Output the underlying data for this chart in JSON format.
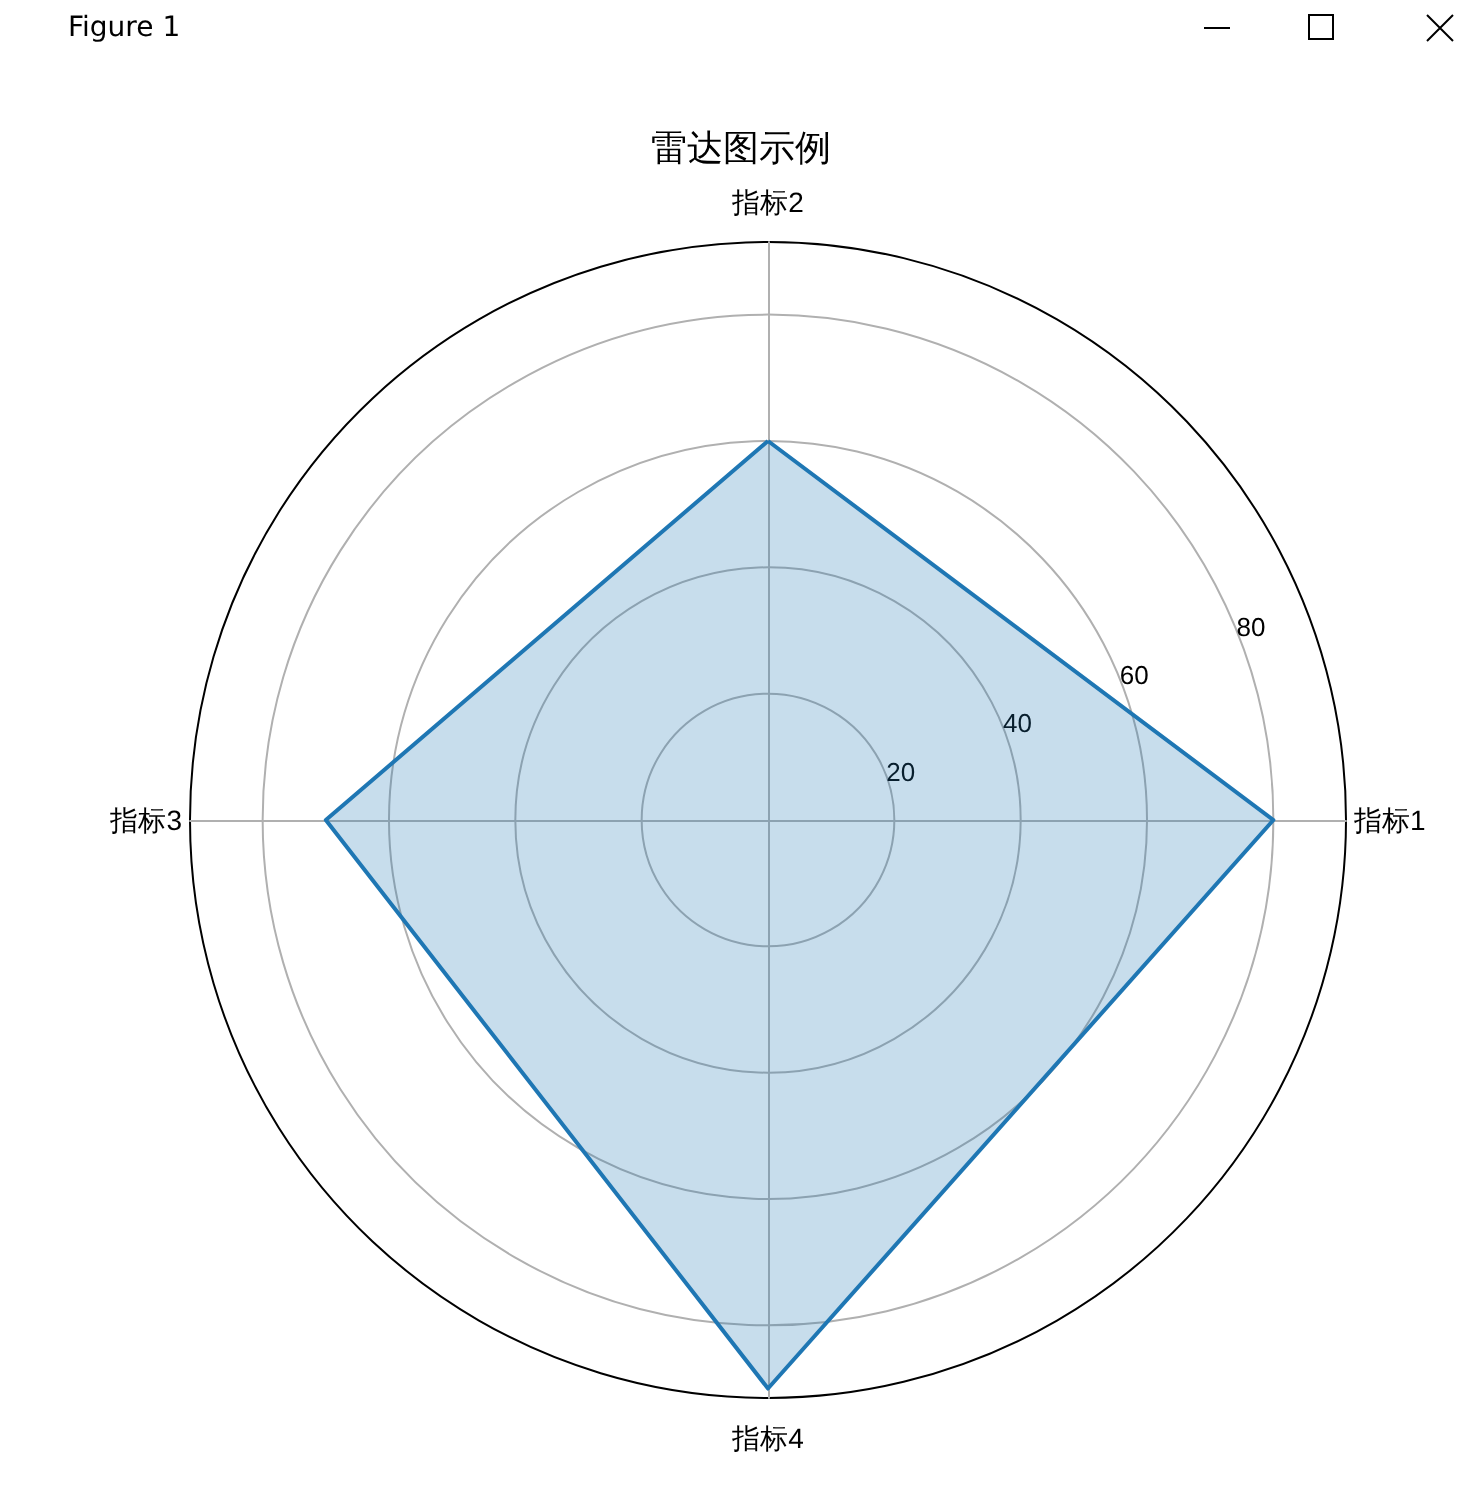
{
  "chart_data": {
    "type": "radar",
    "title": "雷达图示例",
    "categories": [
      "指标2",
      "指标1",
      "指标4",
      "指标3"
    ],
    "series": [
      {
        "color": "#1f77b4",
        "values": [
          60,
          80,
          90,
          70
        ]
      }
    ],
    "ylim": [
      0,
      91.5
    ],
    "yticks": [
      20,
      40,
      60,
      80
    ],
    "grid": true,
    "marker": "none",
    "annotations": [
      "Figure 1"
    ]
  }
}
